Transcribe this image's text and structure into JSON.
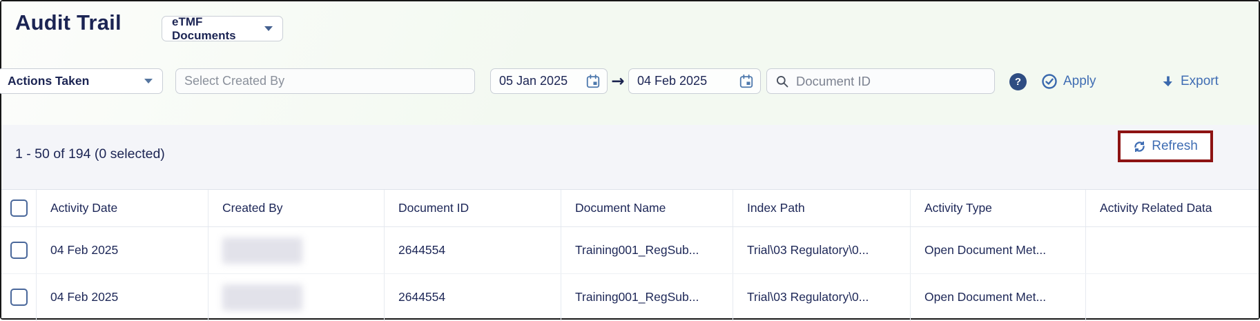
{
  "header": {
    "title": "Audit Trail",
    "scope_dropdown": {
      "value": "eTMF Documents"
    }
  },
  "filters": {
    "actions_dropdown": {
      "value": "Actions Taken"
    },
    "created_by": {
      "placeholder": "Select Created By"
    },
    "date_from": {
      "value": "05 Jan 2025"
    },
    "date_to": {
      "value": "04 Feb 2025"
    },
    "range_arrow_glyph": "→",
    "document_id_search": {
      "placeholder": "Document ID"
    },
    "help_glyph": "?",
    "apply_label": "Apply",
    "export_label": "Export"
  },
  "toolbar": {
    "count_text": "1 - 50 of 194 (0 selected)",
    "refresh_label": "Refresh"
  },
  "table": {
    "columns": [
      "Activity Date",
      "Created By",
      "Document ID",
      "Document Name",
      "Index Path",
      "Activity Type",
      "Activity Related Data"
    ],
    "rows": [
      {
        "activity_date": "04 Feb 2025",
        "created_by_redacted": true,
        "document_id": "2644554",
        "document_name": "Training001_RegSub...",
        "index_path": "Trial\\03 Regulatory\\0...",
        "activity_type": "Open Document Met...",
        "activity_related_data": ""
      },
      {
        "activity_date": "04 Feb 2025",
        "created_by_redacted": true,
        "document_id": "2644554",
        "document_name": "Training001_RegSub...",
        "index_path": "Trial\\03 Regulatory\\0...",
        "activity_type": "Open Document Met...",
        "activity_related_data": ""
      }
    ]
  },
  "icons": {
    "scope_caret": "chevron-down",
    "actions_caret": "chevron-down",
    "calendar": "calendar",
    "search": "magnifier",
    "help": "question-circle-filled",
    "apply": "check-circle-outline",
    "export": "arrow-down-bold",
    "refresh": "sync-arrows"
  },
  "colors": {
    "navy": "#1b2453",
    "accent": "#3f6db3",
    "annot_red": "#8d1313",
    "mint_bg": "#f3f9f1",
    "band_bg": "#f4f5f9",
    "ctl_border": "#c9ced6"
  }
}
